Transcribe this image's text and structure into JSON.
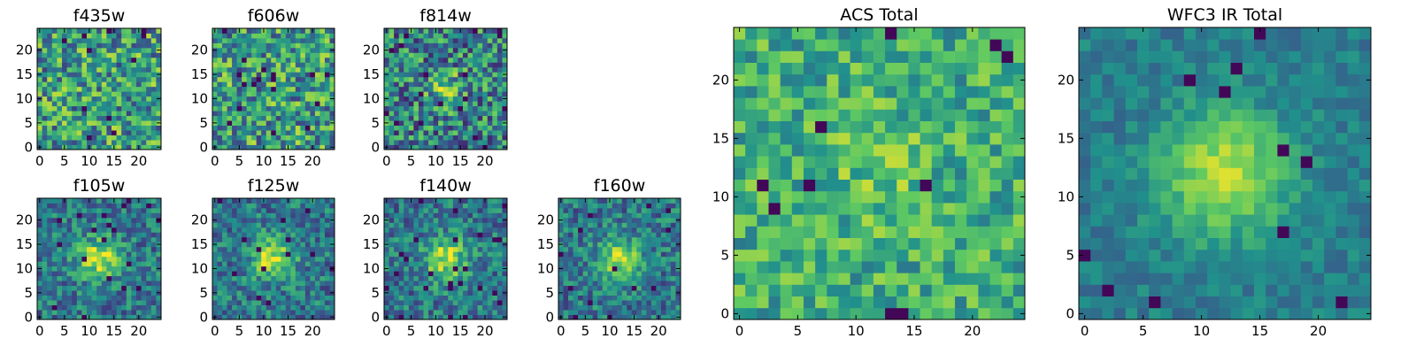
{
  "figure": {
    "name": "multi-band galaxy cutout image grid"
  },
  "chart_data": [
    {
      "type": "heatmap",
      "title": "f435w",
      "pattern": "noise",
      "seed": 11,
      "pixels": 25,
      "xticks": [
        "0",
        "5",
        "10",
        "15",
        "20"
      ],
      "yticks": [
        "0",
        "5",
        "10",
        "15",
        "20"
      ]
    },
    {
      "type": "heatmap",
      "title": "f606w",
      "pattern": "noise",
      "seed": 23,
      "pixels": 25,
      "xticks": [
        "0",
        "5",
        "10",
        "15",
        "20"
      ],
      "yticks": [
        "0",
        "5",
        "10",
        "15",
        "20"
      ]
    },
    {
      "type": "heatmap",
      "title": "f814w",
      "pattern": "weak_source",
      "seed": 37,
      "pixels": 25,
      "xticks": [
        "0",
        "5",
        "10",
        "15",
        "20"
      ],
      "yticks": [
        "0",
        "5",
        "10",
        "15",
        "20"
      ]
    },
    {
      "type": "heatmap",
      "title": "f105w",
      "pattern": "source",
      "seed": 41,
      "pixels": 25,
      "xticks": [
        "0",
        "5",
        "10",
        "15",
        "20"
      ],
      "yticks": [
        "0",
        "5",
        "10",
        "15",
        "20"
      ]
    },
    {
      "type": "heatmap",
      "title": "f125w",
      "pattern": "source",
      "seed": 53,
      "pixels": 25,
      "xticks": [
        "0",
        "5",
        "10",
        "15",
        "20"
      ],
      "yticks": [
        "0",
        "5",
        "10",
        "15",
        "20"
      ]
    },
    {
      "type": "heatmap",
      "title": "f140w",
      "pattern": "source",
      "seed": 67,
      "pixels": 25,
      "xticks": [
        "0",
        "5",
        "10",
        "15",
        "20"
      ],
      "yticks": [
        "0",
        "5",
        "10",
        "15",
        "20"
      ]
    },
    {
      "type": "heatmap",
      "title": "f160w",
      "pattern": "source",
      "seed": 79,
      "pixels": 25,
      "xticks": [
        "0",
        "5",
        "10",
        "15",
        "20"
      ],
      "yticks": [
        "0",
        "5",
        "10",
        "15",
        "20"
      ]
    },
    {
      "type": "heatmap",
      "title": "ACS Total",
      "pattern": "bright_noise",
      "seed": 97,
      "pixels": 25,
      "xticks": [
        "0",
        "5",
        "10",
        "15",
        "20"
      ],
      "yticks": [
        "0",
        "5",
        "10",
        "15",
        "20"
      ]
    },
    {
      "type": "heatmap",
      "title": "WFC3 IR Total",
      "pattern": "smooth_source",
      "seed": 113,
      "pixels": 25,
      "xticks": [
        "0",
        "5",
        "10",
        "15",
        "20"
      ],
      "yticks": [
        "0",
        "5",
        "10",
        "15",
        "20"
      ]
    }
  ],
  "colormap": [
    "#440154",
    "#3b528b",
    "#21918c",
    "#5ec962",
    "#fde725"
  ]
}
